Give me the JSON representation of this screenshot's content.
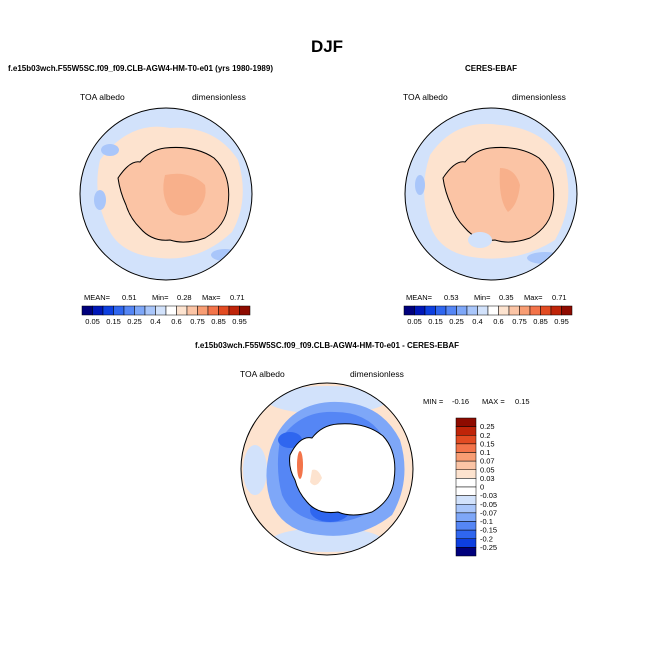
{
  "figure": {
    "title": "DJF"
  },
  "panels": [
    {
      "id": "model",
      "title": "f.e15b03wch.F55W5SC.f09_f09.CLB-AGW4-HM-T0-e01 (yrs 1980-1989)",
      "variable": "TOA albedo",
      "units": "dimensionless",
      "stats": {
        "mean_label": "MEAN=",
        "mean": "0.51",
        "min_label": "Min=",
        "min": "0.28",
        "max_label": "Max=",
        "max": "0.71"
      }
    },
    {
      "id": "obs",
      "title": "CERES-EBAF",
      "variable": "TOA albedo",
      "units": "dimensionless",
      "stats": {
        "mean_label": "MEAN=",
        "mean": "0.53",
        "min_label": "Min=",
        "min": "0.35",
        "max_label": "Max=",
        "max": "0.71"
      }
    },
    {
      "id": "diff",
      "title": "f.e15b03wch.F55W5SC.f09_f09.CLB-AGW4-HM-T0-e01 - CERES-EBAF",
      "variable": "TOA albedo",
      "units": "dimensionless",
      "stats": {
        "min_label": "MIN =",
        "min": "-0.16",
        "max_label": "MAX =",
        "max": "0.15"
      }
    }
  ],
  "chart_data": [
    {
      "type": "heatmap",
      "projection": "south-polar stereographic",
      "title": "f.e15b03wch.F55W5SC.f09_f09.CLB-AGW4-HM-T0-e01 (yrs 1980-1989)",
      "field": "TOA albedo",
      "units": "dimensionless",
      "mean": 0.51,
      "min": 0.28,
      "max": 0.71,
      "colorbar": {
        "orientation": "horizontal",
        "ticks": [
          "0.05",
          "0.15",
          "0.25",
          "0.4",
          "0.6",
          "0.75",
          "0.85",
          "0.95"
        ],
        "levels": [
          0.05,
          0.1,
          0.15,
          0.2,
          0.25,
          0.3,
          0.4,
          0.5,
          0.6,
          0.7,
          0.75,
          0.8,
          0.85,
          0.9,
          0.95
        ],
        "colors": [
          "#00007c",
          "#0017b8",
          "#0d3fe0",
          "#2f66ef",
          "#5586f5",
          "#7ea7f8",
          "#a9c6fa",
          "#d2e2fb",
          "#ffffff",
          "#fde3cf",
          "#fbc4a5",
          "#f89d73",
          "#f3744a",
          "#e24b22",
          "#bf2409",
          "#8e0b00"
        ]
      },
      "regions": {
        "ocean": 0.3,
        "ice_edge": 0.45,
        "continent": 0.65,
        "plateau": 0.7
      }
    },
    {
      "type": "heatmap",
      "projection": "south-polar stereographic",
      "title": "CERES-EBAF",
      "field": "TOA albedo",
      "units": "dimensionless",
      "mean": 0.53,
      "min": 0.35,
      "max": 0.71,
      "colorbar": {
        "orientation": "horizontal",
        "ticks": [
          "0.05",
          "0.15",
          "0.25",
          "0.4",
          "0.6",
          "0.75",
          "0.85",
          "0.95"
        ],
        "levels": [
          0.05,
          0.1,
          0.15,
          0.2,
          0.25,
          0.3,
          0.4,
          0.5,
          0.6,
          0.7,
          0.75,
          0.8,
          0.85,
          0.9,
          0.95
        ],
        "colors": [
          "#00007c",
          "#0017b8",
          "#0d3fe0",
          "#2f66ef",
          "#5586f5",
          "#7ea7f8",
          "#a9c6fa",
          "#d2e2fb",
          "#ffffff",
          "#fde3cf",
          "#fbc4a5",
          "#f89d73",
          "#f3744a",
          "#e24b22",
          "#bf2409",
          "#8e0b00"
        ]
      },
      "regions": {
        "ocean": 0.32,
        "ice_edge": 0.47,
        "continent": 0.65,
        "plateau": 0.7
      }
    },
    {
      "type": "heatmap",
      "projection": "south-polar stereographic",
      "title": "f.e15b03wch.F55W5SC.f09_f09.CLB-AGW4-HM-T0-e01 - CERES-EBAF",
      "field": "TOA albedo difference",
      "units": "dimensionless",
      "min": -0.16,
      "max": 0.15,
      "colorbar": {
        "orientation": "vertical",
        "ticks": [
          "0.25",
          "0.2",
          "0.15",
          "0.1",
          "0.07",
          "0.05",
          "0.03",
          "0",
          "-0.03",
          "-0.05",
          "-0.07",
          "-0.1",
          "-0.15",
          "-0.2",
          "-0.25"
        ],
        "colors": [
          "#8e0b00",
          "#bf2409",
          "#e24b22",
          "#f3744a",
          "#f89d73",
          "#fbc4a5",
          "#fde3cf",
          "#ffffff",
          "#ffffff",
          "#d2e2fb",
          "#a9c6fa",
          "#7ea7f8",
          "#5586f5",
          "#2f66ef",
          "#0d3fe0",
          "#00007c"
        ]
      },
      "regions": {
        "open_ocean": 0.03,
        "sea_ice_belt": -0.07,
        "ross_weddell": -0.1,
        "continent": 0.0
      }
    }
  ]
}
